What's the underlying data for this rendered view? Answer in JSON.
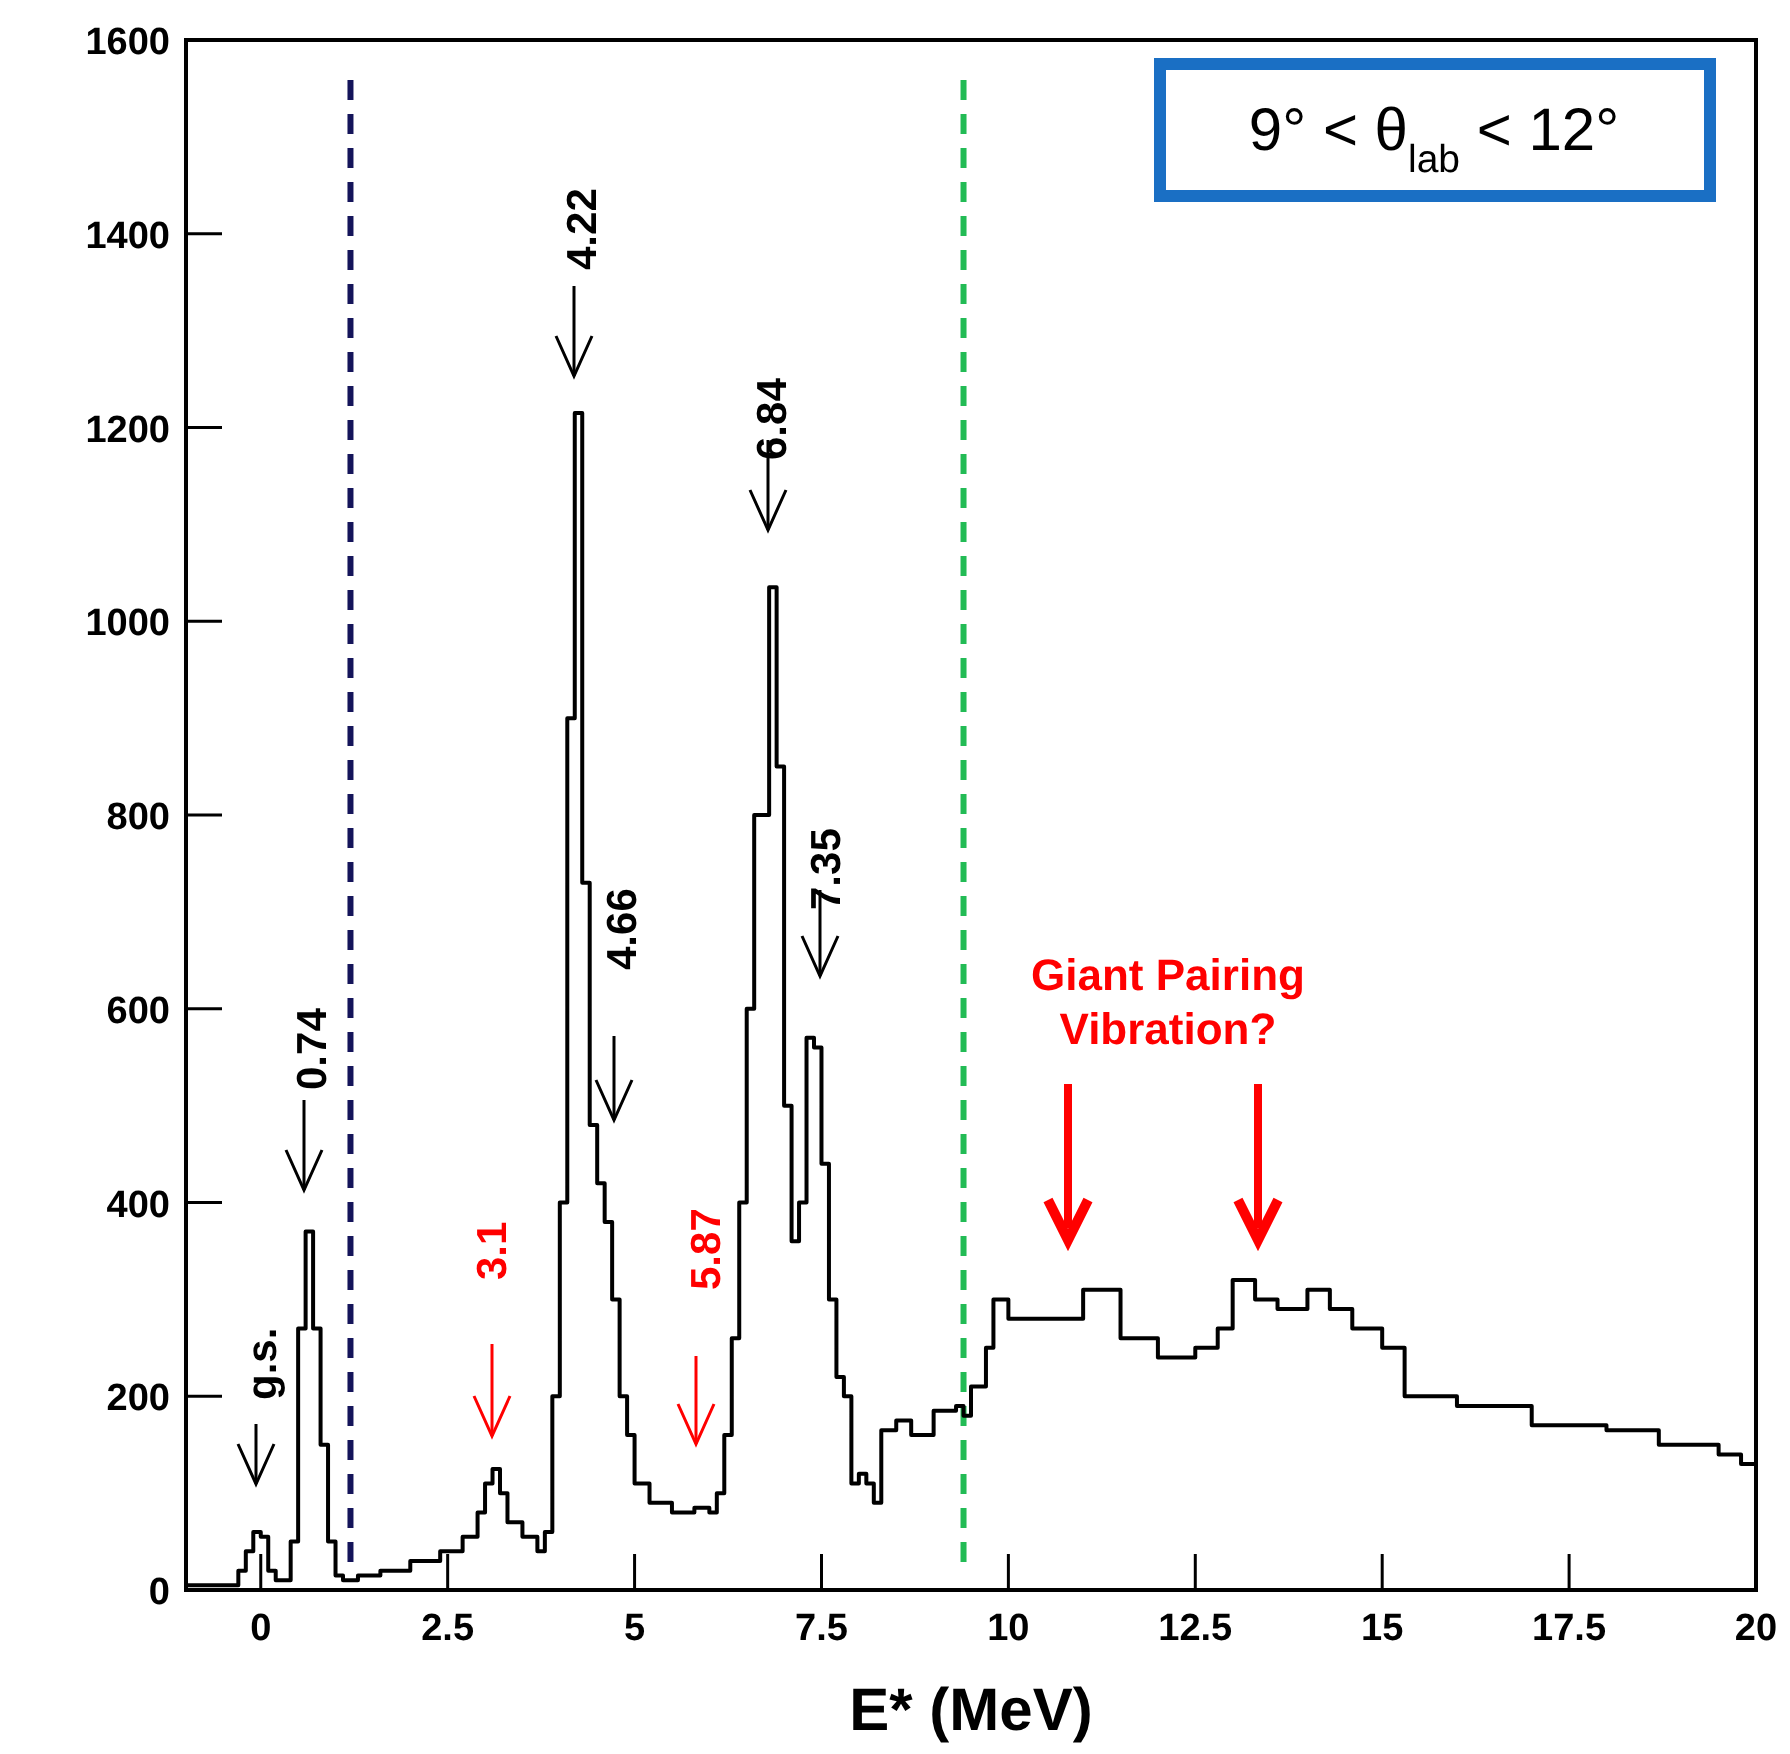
{
  "chart_data": {
    "type": "step",
    "xlabel": "E* (MeV)",
    "xlim": [
      -1,
      20
    ],
    "ylim": [
      0,
      1600
    ],
    "xticks": [
      0,
      2.5,
      5,
      7.5,
      10,
      12.5,
      15,
      17.5,
      20
    ],
    "yticks": [
      0,
      200,
      400,
      600,
      800,
      1000,
      1200,
      1400,
      1600
    ],
    "grid": false,
    "series": [
      {
        "color": "#000000",
        "x": [
          -1.0,
          -0.5,
          -0.3,
          -0.2,
          -0.1,
          0.0,
          0.1,
          0.2,
          0.4,
          0.5,
          0.6,
          0.7,
          0.8,
          0.9,
          1.0,
          1.1,
          1.3,
          1.6,
          2.0,
          2.4,
          2.7,
          2.9,
          3.0,
          3.1,
          3.2,
          3.3,
          3.5,
          3.7,
          3.8,
          3.9,
          4.0,
          4.1,
          4.2,
          4.3,
          4.4,
          4.5,
          4.6,
          4.7,
          4.8,
          4.9,
          5.0,
          5.2,
          5.5,
          5.8,
          6.0,
          6.1,
          6.2,
          6.3,
          6.4,
          6.5,
          6.6,
          6.8,
          6.9,
          7.0,
          7.1,
          7.2,
          7.3,
          7.4,
          7.5,
          7.6,
          7.7,
          7.8,
          7.9,
          8.0,
          8.1,
          8.2,
          8.3,
          8.5,
          8.7,
          9.0,
          9.3,
          9.4,
          9.5,
          9.7,
          9.8,
          10.0,
          10.5,
          11.0,
          11.5,
          12.0,
          12.5,
          12.8,
          13.0,
          13.3,
          13.6,
          14.0,
          14.3,
          14.6,
          15.0,
          15.3,
          16.0,
          17.0,
          18.0,
          18.7,
          19.5,
          19.8,
          20.0
        ],
        "values": [
          5,
          5,
          20,
          40,
          60,
          55,
          20,
          10,
          50,
          270,
          370,
          270,
          150,
          50,
          15,
          10,
          15,
          20,
          30,
          40,
          55,
          80,
          110,
          125,
          100,
          70,
          55,
          40,
          60,
          200,
          400,
          900,
          1215,
          730,
          480,
          420,
          380,
          300,
          200,
          160,
          110,
          90,
          80,
          85,
          80,
          100,
          160,
          260,
          400,
          600,
          800,
          1035,
          850,
          500,
          360,
          400,
          570,
          560,
          440,
          300,
          220,
          200,
          110,
          120,
          110,
          90,
          165,
          175,
          160,
          185,
          190,
          180,
          210,
          250,
          300,
          280,
          280,
          310,
          260,
          240,
          250,
          270,
          320,
          300,
          290,
          310,
          290,
          270,
          250,
          200,
          190,
          170,
          165,
          150,
          140,
          130,
          100
        ]
      }
    ],
    "ref_lines": [
      {
        "axis": "x",
        "value": 1.2,
        "color": "#14145a",
        "line_style": "dashed"
      },
      {
        "axis": "x",
        "value": 9.4,
        "color": "#22bb55",
        "line_style": "dashed"
      }
    ],
    "annotations": [
      "9°   < θ$_{lab}$ < 12°",
      "g.s.",
      "0.74",
      "3.1",
      "4.22",
      "4.66",
      "5.87",
      "6.84",
      "7.35",
      "Giant Pairing\nVibration?"
    ]
  }
}
